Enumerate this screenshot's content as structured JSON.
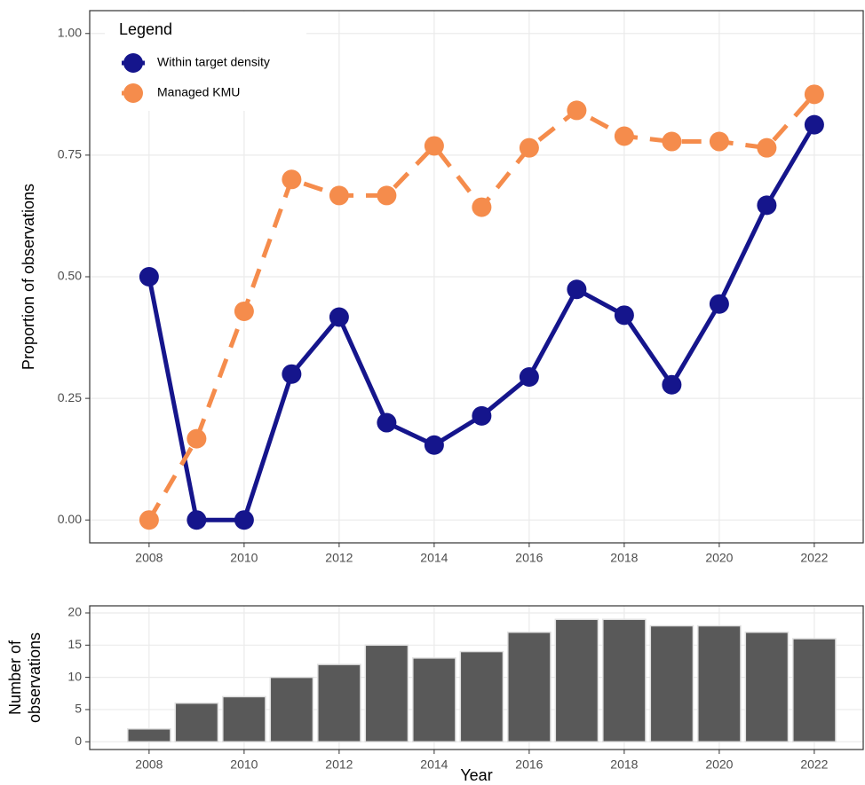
{
  "chart_data": [
    {
      "type": "line",
      "y_label": "Proportion of observations",
      "legend_title": "Legend",
      "legend": "top-left",
      "grid": true,
      "x": [
        2008,
        2009,
        2010,
        2011,
        2012,
        2013,
        2014,
        2015,
        2016,
        2017,
        2018,
        2019,
        2020,
        2021,
        2022
      ],
      "series": [
        {
          "name": "Within target density",
          "color": "#15158c",
          "linestyle": "solid",
          "values": [
            0.5,
            0,
            0,
            0.3,
            0.417,
            0.2,
            0.154,
            0.214,
            0.294,
            0.474,
            0.421,
            0.278,
            0.444,
            0.647,
            0.8125
          ]
        },
        {
          "name": "Managed KMU",
          "color": "#f58c4c",
          "linestyle": "dashed",
          "values": [
            0,
            0.167,
            0.429,
            0.7,
            0.667,
            0.667,
            0.769,
            0.643,
            0.765,
            0.842,
            0.789,
            0.778,
            0.778,
            0.765,
            0.875
          ]
        }
      ],
      "xlim": [
        2006.75,
        2023.03
      ],
      "xticks": [
        2008,
        2010,
        2012,
        2014,
        2016,
        2018,
        2020,
        2022
      ],
      "ylim": [
        -0.047,
        1.047
      ],
      "yticks": [
        {
          "value": 0,
          "label": "0.00"
        },
        {
          "value": 0.25,
          "label": "0.25"
        },
        {
          "value": 0.5,
          "label": "0.50"
        },
        {
          "value": 0.75,
          "label": "0.75"
        },
        {
          "value": 1,
          "label": "1.00"
        }
      ]
    },
    {
      "type": "bar",
      "y_label": [
        "Number of",
        "observations"
      ],
      "x_label": "Year",
      "grid": true,
      "color": "#595959",
      "x": [
        2008,
        2009,
        2010,
        2011,
        2012,
        2013,
        2014,
        2015,
        2016,
        2017,
        2018,
        2019,
        2020,
        2021,
        2022
      ],
      "values": [
        2,
        6,
        7,
        10,
        12,
        15,
        13,
        14,
        17,
        19,
        19,
        18,
        18,
        17,
        16
      ],
      "xlim": [
        2006.75,
        2023.03
      ],
      "xticks": [
        2008,
        2010,
        2012,
        2014,
        2016,
        2018,
        2020,
        2022
      ],
      "ylim": [
        -1.2,
        21.1
      ],
      "yticks": [
        0,
        5,
        10,
        15,
        20
      ]
    }
  ]
}
